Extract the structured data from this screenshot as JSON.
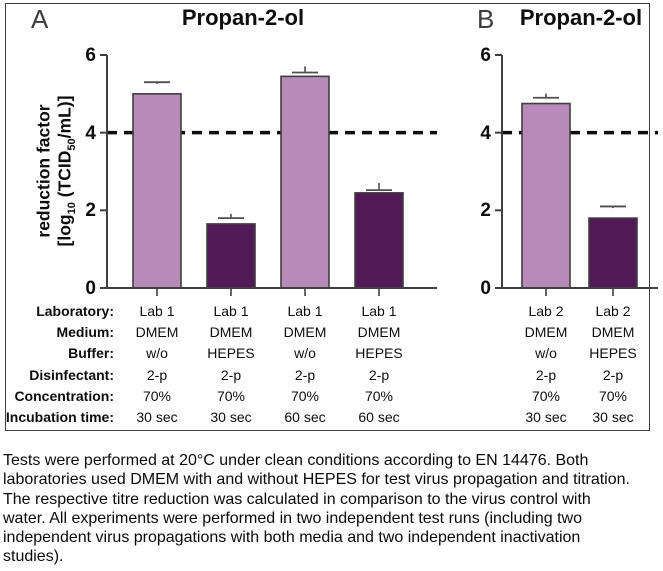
{
  "colors": {
    "bar_light": "#b78ab8",
    "bar_dark": "#521b57",
    "bar_outline": "#3f3f3f",
    "error_bar": "#4f4f4f",
    "axis": "#3f3f3f",
    "dashed_line": "#0d0d0d",
    "border": "#3f3f3f"
  },
  "yaxis_label": {
    "line1": "reduction factor",
    "line2_prefix": "[log",
    "line2_sub1": "10",
    "line2_mid": " (TCID",
    "line2_sub2": "50",
    "line2_suffix": "/mL)]"
  },
  "table_row_labels": [
    "Laboratory:",
    "Medium:",
    "Buffer:",
    "Disinfectant:",
    "Concentration:",
    "Incubation time:"
  ],
  "chart_data": [
    {
      "panel_label": "A",
      "type": "bar",
      "title": "Propan-2-ol",
      "ylabel": "reduction factor [log10 (TCID50/mL)]",
      "ylim": [
        0,
        6
      ],
      "yticks": [
        0,
        2,
        4,
        6
      ],
      "threshold_line": 4,
      "bars": [
        {
          "value": 5.0,
          "error_plus": 0.3,
          "shade": "light",
          "conditions": [
            "Lab 1",
            "DMEM",
            "w/o",
            "2-p",
            "70%",
            "30 sec"
          ]
        },
        {
          "value": 1.65,
          "error_plus": 0.15,
          "shade": "dark",
          "conditions": [
            "Lab 1",
            "DMEM",
            "HEPES",
            "2-p",
            "70%",
            "30 sec"
          ]
        },
        {
          "value": 5.45,
          "error_plus": 0.1,
          "shade": "light",
          "conditions": [
            "Lab 1",
            "DMEM",
            "w/o",
            "2-p",
            "70%",
            "60 sec"
          ]
        },
        {
          "value": 2.45,
          "error_plus": 0.07,
          "shade": "dark",
          "conditions": [
            "Lab 1",
            "DMEM",
            "HEPES",
            "2-p",
            "70%",
            "60 sec"
          ]
        }
      ]
    },
    {
      "panel_label": "B",
      "type": "bar",
      "title": "Propan-2-ol",
      "ylabel": "",
      "ylim": [
        0,
        6
      ],
      "yticks": [
        0,
        2,
        4,
        6
      ],
      "threshold_line": 4,
      "bars": [
        {
          "value": 4.75,
          "error_plus": 0.15,
          "shade": "light",
          "conditions": [
            "Lab 2",
            "DMEM",
            "w/o",
            "2-p",
            "70%",
            "30 sec"
          ]
        },
        {
          "value": 1.8,
          "error_plus": 0.3,
          "shade": "dark",
          "conditions": [
            "Lab 2",
            "DMEM",
            "HEPES",
            "2-p",
            "70%",
            "30 sec"
          ]
        }
      ]
    }
  ],
  "caption_lines": [
    "Tests were performed at 20°C under clean conditions according to EN 14476. Both",
    "laboratories used DMEM with and without HEPES for test virus propagation and titration.",
    "The respective titre reduction was calculated in comparison to the virus control with",
    "water. All experiments were performed in two independent test runs (including two",
    "independent virus propagations with both media and two independent inactivation",
    "studies)."
  ]
}
